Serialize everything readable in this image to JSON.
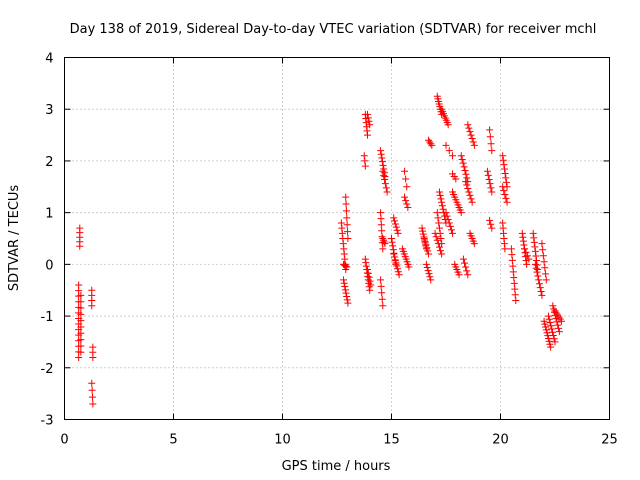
{
  "chart_data": {
    "type": "scatter",
    "title": "Day 138 of 2019, Sidereal Day-to-day VTEC variation (SDTVAR) for receiver mchl",
    "xlabel": "GPS time / hours",
    "ylabel": "SDTVAR / TECUs",
    "xlim": [
      0,
      25
    ],
    "ylim": [
      -3,
      4
    ],
    "xticks": [
      "0",
      "5",
      "10",
      "15",
      "20",
      "25"
    ],
    "yticks": [
      "-3",
      "-2",
      "-1",
      "0",
      "1",
      "2",
      "3",
      "4"
    ],
    "grid": true,
    "marker": "+",
    "color": "#ff0000",
    "segments": [
      {
        "x0": 0.7,
        "x1": 0.7,
        "y0": 0.7,
        "y1": 0.35,
        "n": 5
      },
      {
        "x0": 0.65,
        "x1": 0.65,
        "y0": -0.4,
        "y1": -1.8,
        "n": 14
      },
      {
        "x0": 0.75,
        "x1": 0.75,
        "y0": -0.6,
        "y1": -1.7,
        "n": 10
      },
      {
        "x0": 1.25,
        "x1": 1.25,
        "y0": -0.5,
        "y1": -0.8,
        "n": 4
      },
      {
        "x0": 1.3,
        "x1": 1.3,
        "y0": -1.6,
        "y1": -1.8,
        "n": 3
      },
      {
        "x0": 1.25,
        "x1": 1.3,
        "y0": -2.3,
        "y1": -2.7,
        "n": 4
      },
      {
        "x0": 12.7,
        "x1": 12.9,
        "y0": 0.8,
        "y1": -0.1,
        "n": 10
      },
      {
        "x0": 12.8,
        "x1": 13.0,
        "y0": -0.3,
        "y1": -0.75,
        "n": 8
      },
      {
        "x0": 12.9,
        "x1": 13.0,
        "y0": 1.3,
        "y1": 0.5,
        "n": 7
      },
      {
        "x0": 12.8,
        "x1": 12.95,
        "y0": 0.0,
        "y1": -0.05,
        "n": 4
      },
      {
        "x0": 13.8,
        "x1": 13.9,
        "y0": 2.9,
        "y1": 2.5,
        "n": 6
      },
      {
        "x0": 13.9,
        "x1": 14.0,
        "y0": 2.9,
        "y1": 2.7,
        "n": 4
      },
      {
        "x0": 13.75,
        "x1": 13.8,
        "y0": 2.1,
        "y1": 1.9,
        "n": 3
      },
      {
        "x0": 13.8,
        "x1": 14.0,
        "y0": 0.1,
        "y1": -0.5,
        "n": 10
      },
      {
        "x0": 13.9,
        "x1": 14.05,
        "y0": -0.1,
        "y1": -0.4,
        "n": 5
      },
      {
        "x0": 14.5,
        "x1": 14.7,
        "y0": 2.2,
        "y1": 1.7,
        "n": 8
      },
      {
        "x0": 14.6,
        "x1": 14.8,
        "y0": 1.8,
        "y1": 1.4,
        "n": 6
      },
      {
        "x0": 14.5,
        "x1": 14.6,
        "y0": 1.0,
        "y1": 0.3,
        "n": 7
      },
      {
        "x0": 14.6,
        "x1": 14.7,
        "y0": 0.5,
        "y1": 0.4,
        "n": 4
      },
      {
        "x0": 14.5,
        "x1": 14.6,
        "y0": -0.3,
        "y1": -0.8,
        "n": 5
      },
      {
        "x0": 15.1,
        "x1": 15.3,
        "y0": 0.9,
        "y1": 0.6,
        "n": 6
      },
      {
        "x0": 15.0,
        "x1": 15.2,
        "y0": 0.5,
        "y1": 0.0,
        "n": 8
      },
      {
        "x0": 15.1,
        "x1": 15.35,
        "y0": 0.2,
        "y1": -0.2,
        "n": 8
      },
      {
        "x0": 15.6,
        "x1": 15.7,
        "y0": 1.8,
        "y1": 1.5,
        "n": 3
      },
      {
        "x0": 15.6,
        "x1": 15.75,
        "y0": 1.3,
        "y1": 1.1,
        "n": 4
      },
      {
        "x0": 15.5,
        "x1": 15.8,
        "y0": 0.3,
        "y1": -0.05,
        "n": 8
      },
      {
        "x0": 16.4,
        "x1": 16.6,
        "y0": 0.7,
        "y1": 0.3,
        "n": 8
      },
      {
        "x0": 16.5,
        "x1": 16.7,
        "y0": 0.5,
        "y1": 0.2,
        "n": 6
      },
      {
        "x0": 16.7,
        "x1": 16.85,
        "y0": 2.4,
        "y1": 2.3,
        "n": 4
      },
      {
        "x0": 16.6,
        "x1": 16.8,
        "y0": 0.0,
        "y1": -0.3,
        "n": 6
      },
      {
        "x0": 17.1,
        "x1": 17.3,
        "y0": 3.25,
        "y1": 2.9,
        "n": 8
      },
      {
        "x0": 17.3,
        "x1": 17.6,
        "y0": 3.0,
        "y1": 2.7,
        "n": 8
      },
      {
        "x0": 17.1,
        "x1": 17.3,
        "y0": 1.0,
        "y1": 0.4,
        "n": 7
      },
      {
        "x0": 17.2,
        "x1": 17.5,
        "y0": 1.4,
        "y1": 0.8,
        "n": 10
      },
      {
        "x0": 17.0,
        "x1": 17.3,
        "y0": 0.6,
        "y1": 0.2,
        "n": 7
      },
      {
        "x0": 17.5,
        "x1": 17.8,
        "y0": 2.3,
        "y1": 2.1,
        "n": 3
      },
      {
        "x0": 17.8,
        "x1": 17.95,
        "y0": 1.75,
        "y1": 1.65,
        "n": 3
      },
      {
        "x0": 17.5,
        "x1": 17.8,
        "y0": 1.0,
        "y1": 0.6,
        "n": 7
      },
      {
        "x0": 17.8,
        "x1": 18.2,
        "y0": 1.4,
        "y1": 1.0,
        "n": 9
      },
      {
        "x0": 17.9,
        "x1": 18.1,
        "y0": 0.0,
        "y1": -0.2,
        "n": 5
      },
      {
        "x0": 18.2,
        "x1": 18.5,
        "y0": 2.1,
        "y1": 1.6,
        "n": 8
      },
      {
        "x0": 18.4,
        "x1": 18.7,
        "y0": 1.6,
        "y1": 1.2,
        "n": 7
      },
      {
        "x0": 18.5,
        "x1": 18.8,
        "y0": 2.7,
        "y1": 2.3,
        "n": 7
      },
      {
        "x0": 18.6,
        "x1": 18.8,
        "y0": 0.6,
        "y1": 0.4,
        "n": 5
      },
      {
        "x0": 18.3,
        "x1": 18.5,
        "y0": 0.1,
        "y1": -0.2,
        "n": 5
      },
      {
        "x0": 19.5,
        "x1": 19.6,
        "y0": 2.6,
        "y1": 2.2,
        "n": 4
      },
      {
        "x0": 19.4,
        "x1": 19.6,
        "y0": 1.8,
        "y1": 1.4,
        "n": 6
      },
      {
        "x0": 19.5,
        "x1": 19.6,
        "y0": 0.85,
        "y1": 0.7,
        "n": 3
      },
      {
        "x0": 20.1,
        "x1": 20.3,
        "y0": 2.1,
        "y1": 1.5,
        "n": 8
      },
      {
        "x0": 20.1,
        "x1": 20.3,
        "y0": 1.5,
        "y1": 1.2,
        "n": 5
      },
      {
        "x0": 20.1,
        "x1": 20.2,
        "y0": 0.8,
        "y1": 0.3,
        "n": 6
      },
      {
        "x0": 20.5,
        "x1": 20.7,
        "y0": 0.3,
        "y1": -0.7,
        "n": 10
      },
      {
        "x0": 21.0,
        "x1": 21.2,
        "y0": 0.6,
        "y1": 0.0,
        "n": 9
      },
      {
        "x0": 21.1,
        "x1": 21.3,
        "y0": 0.3,
        "y1": 0.1,
        "n": 4
      },
      {
        "x0": 21.5,
        "x1": 21.7,
        "y0": 0.6,
        "y1": -0.1,
        "n": 9
      },
      {
        "x0": 21.6,
        "x1": 21.9,
        "y0": 0.0,
        "y1": -0.6,
        "n": 9
      },
      {
        "x0": 21.9,
        "x1": 22.1,
        "y0": 0.4,
        "y1": -0.3,
        "n": 7
      },
      {
        "x0": 22.0,
        "x1": 22.3,
        "y0": -1.1,
        "y1": -1.6,
        "n": 10
      },
      {
        "x0": 22.2,
        "x1": 22.5,
        "y0": -1.0,
        "y1": -1.5,
        "n": 9
      },
      {
        "x0": 22.4,
        "x1": 22.7,
        "y0": -0.8,
        "y1": -1.3,
        "n": 9
      },
      {
        "x0": 22.5,
        "x1": 22.8,
        "y0": -0.9,
        "y1": -1.1,
        "n": 6
      }
    ]
  }
}
